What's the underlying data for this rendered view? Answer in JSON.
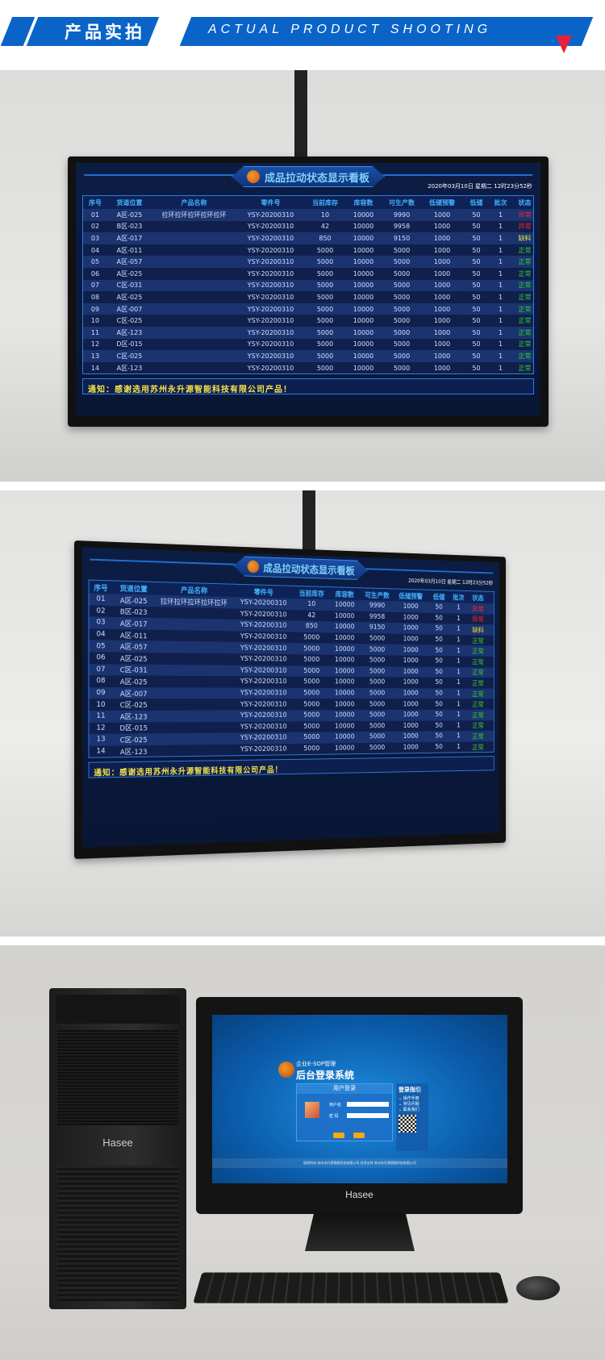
{
  "header": {
    "title_cn": "产品实拍",
    "title_en": "ACTUAL PRODUCT SHOOTING",
    "accent_color": "#0a64c8",
    "mark_color": "#e8203a"
  },
  "board": {
    "title": "成品拉动状态显示看板",
    "datetime": "2020年03月10日 星期二 12时23分52秒",
    "columns": [
      "序号",
      "货道位置",
      "产品名称",
      "零件号",
      "当前库存",
      "库容数",
      "可生产数",
      "低储预警",
      "低储",
      "批次",
      "状态"
    ],
    "rows": [
      [
        "01",
        "A区-025",
        "拉环拉环拉环拉环拉环",
        "YSY-20200310",
        "10",
        "10000",
        "9990",
        "1000",
        "50",
        "1",
        "异常"
      ],
      [
        "02",
        "B区-023",
        "",
        "YSY-20200310",
        "42",
        "10000",
        "9958",
        "1000",
        "50",
        "1",
        "异常"
      ],
      [
        "03",
        "A区-017",
        "",
        "YSY-20200310",
        "850",
        "10000",
        "9150",
        "1000",
        "50",
        "1",
        "缺料"
      ],
      [
        "04",
        "A区-011",
        "",
        "YSY-20200310",
        "5000",
        "10000",
        "5000",
        "1000",
        "50",
        "1",
        "正常"
      ],
      [
        "05",
        "A区-057",
        "",
        "YSY-20200310",
        "5000",
        "10000",
        "5000",
        "1000",
        "50",
        "1",
        "正常"
      ],
      [
        "06",
        "A区-025",
        "",
        "YSY-20200310",
        "5000",
        "10000",
        "5000",
        "1000",
        "50",
        "1",
        "正常"
      ],
      [
        "07",
        "C区-031",
        "",
        "YSY-20200310",
        "5000",
        "10000",
        "5000",
        "1000",
        "50",
        "1",
        "正常"
      ],
      [
        "08",
        "A区-025",
        "",
        "YSY-20200310",
        "5000",
        "10000",
        "5000",
        "1000",
        "50",
        "1",
        "正常"
      ],
      [
        "09",
        "A区-007",
        "",
        "YSY-20200310",
        "5000",
        "10000",
        "5000",
        "1000",
        "50",
        "1",
        "正常"
      ],
      [
        "10",
        "C区-025",
        "",
        "YSY-20200310",
        "5000",
        "10000",
        "5000",
        "1000",
        "50",
        "1",
        "正常"
      ],
      [
        "11",
        "A区-123",
        "",
        "YSY-20200310",
        "5000",
        "10000",
        "5000",
        "1000",
        "50",
        "1",
        "正常"
      ],
      [
        "12",
        "D区-015",
        "",
        "YSY-20200310",
        "5000",
        "10000",
        "5000",
        "1000",
        "50",
        "1",
        "正常"
      ],
      [
        "13",
        "C区-025",
        "",
        "YSY-20200310",
        "5000",
        "10000",
        "5000",
        "1000",
        "50",
        "1",
        "正常"
      ],
      [
        "14",
        "A区-123",
        "",
        "YSY-20200310",
        "5000",
        "10000",
        "5000",
        "1000",
        "50",
        "1",
        "正常"
      ]
    ],
    "status_colors": {
      "异常": "#ff2424",
      "缺料": "#e8e83a",
      "正常": "#2fd02f"
    },
    "notice": "通知：感谢选用苏州永升源智能科技有限公司产品！"
  },
  "computer": {
    "tower_brand": "Hasee",
    "monitor_brand": "Hasee",
    "login": {
      "subtitle": "企业E-SOP管理",
      "title": "后台登录系统",
      "panel_title": "用户登录",
      "username_label": "用户名",
      "password_label": "密 码",
      "guide_title": "登录指引",
      "guide_items": [
        "操作手册",
        "常见问题",
        "联系我们"
      ],
      "footer": "版权所有 苏州永升源智能科技有限公司    技术支持 苏州永升源智能科技有限公司"
    }
  }
}
